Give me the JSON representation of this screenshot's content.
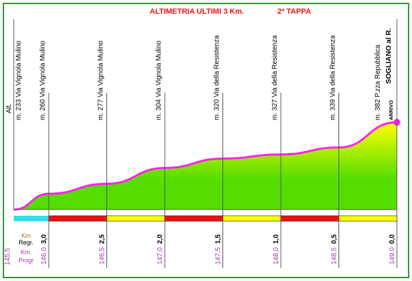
{
  "chart_data": {
    "type": "area",
    "title": "ALTIMETRIA  ULTIMI  3 Km.",
    "subtitle": "2ª TAPPA",
    "ylabel": "Alt.",
    "km_regr_label": [
      "Km",
      "Regr."
    ],
    "km_progr_label": [
      "Km.",
      "Progr"
    ],
    "start_progr": "145,5",
    "points": [
      {
        "km_progr": 145.5,
        "alt": 233,
        "label": "m. 233  Via Vignola Mulino"
      },
      {
        "km_progr": 146.0,
        "alt": 260,
        "label": "m. 260  Via Vignola Mulino",
        "regr": "3,0",
        "progr": "146,0"
      },
      {
        "km_progr": 146.5,
        "alt": 277,
        "label": "m. 277  Via Vignola Mulino",
        "regr": "2,5",
        "progr": "146,5"
      },
      {
        "km_progr": 147.0,
        "alt": 304,
        "label": "m. 304  Via Vignola Mulino",
        "regr": "2,0",
        "progr": "147,0"
      },
      {
        "km_progr": 147.5,
        "alt": 320,
        "label": "m. 320  Via della Resistenza",
        "regr": "1,5",
        "progr": "147,5"
      },
      {
        "km_progr": 148.0,
        "alt": 327,
        "label": "m. 327  Via della Resistenza",
        "regr": "1,0",
        "progr": "148,0"
      },
      {
        "km_progr": 148.5,
        "alt": 339,
        "label": "m. 339  Via della Resistenza",
        "regr": "0,5",
        "progr": "148,5"
      },
      {
        "km_progr": 149.0,
        "alt": 382,
        "label": "m. 382  P.zza Repubblica",
        "regr": "0,0",
        "progr": "149,0"
      }
    ],
    "finish": {
      "label": "SOGLIANO al R.",
      "tag": "ARRIVO"
    },
    "segment_colors": [
      "#33ddee",
      "#ee1111",
      "#ffff00",
      "#ee1111",
      "#ffff00",
      "#ee1111",
      "#ffff00"
    ],
    "colors": {
      "line": "#ff22ee",
      "fill_low": "#55dd00",
      "fill_high": "#ffff00",
      "frame": "#2e9a2e",
      "title": "#ee1111",
      "progr": "#aa33aa"
    }
  }
}
